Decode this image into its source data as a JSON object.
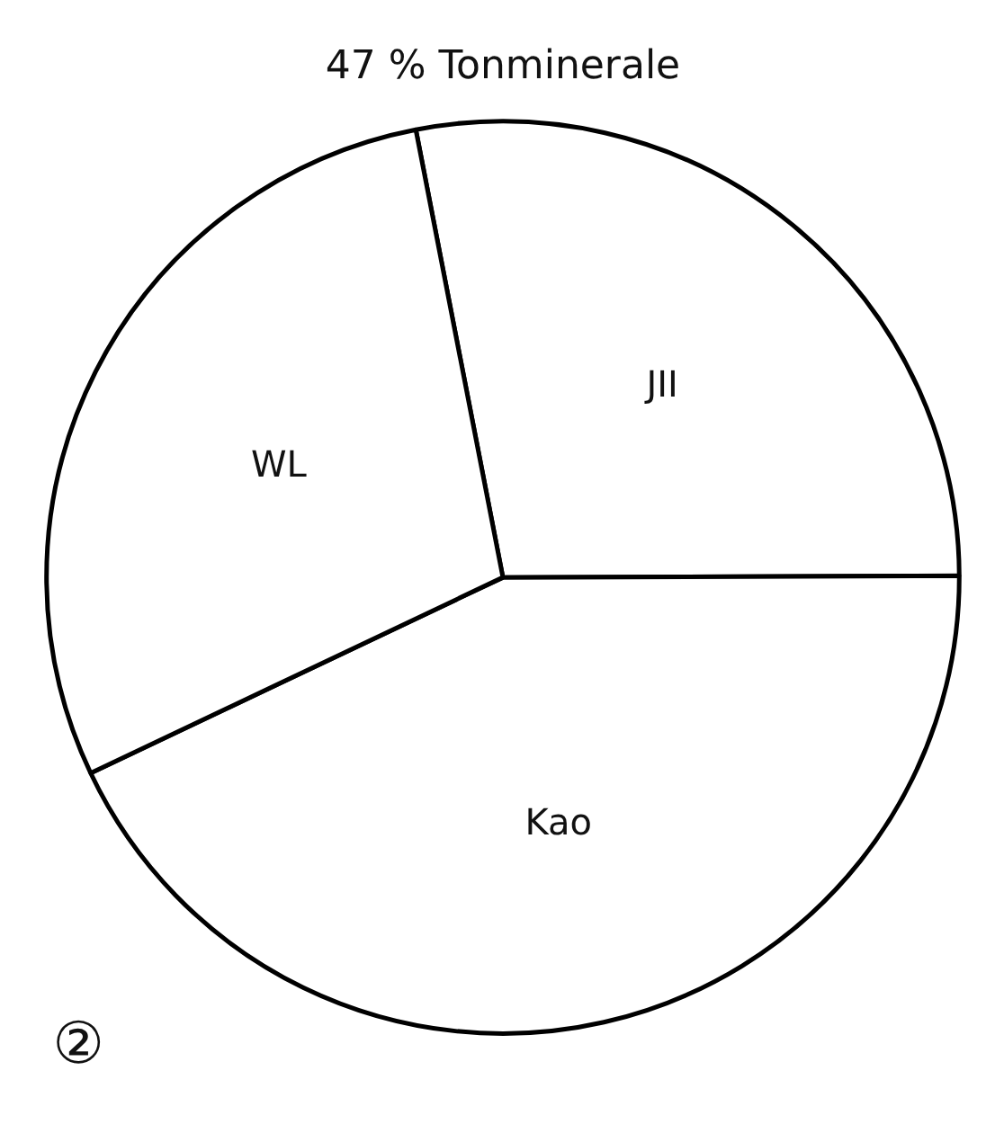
{
  "chart_data": {
    "type": "pie",
    "title": "47 % Tonminerale",
    "categories": [
      "JII",
      "Kao",
      "WL"
    ],
    "values": [
      28,
      43,
      29
    ],
    "colors": [
      "#ffffff",
      "#ffffff",
      "#ffffff"
    ],
    "annotations": [
      "②"
    ]
  }
}
